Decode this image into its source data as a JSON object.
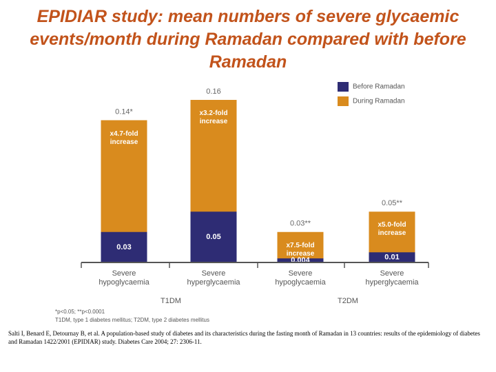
{
  "chart_data": {
    "type": "bar",
    "title": "EPIDIAR study: mean numbers of severe glycaemic events/month during Ramadan compared with before Ramadan",
    "categories": [
      "Severe hypoglycaemia",
      "Severe hyperglycaemia",
      "Severe hypoglycaemia",
      "Severe hyperglycaemia"
    ],
    "groups": [
      "T1DM",
      "T2DM"
    ],
    "series": [
      {
        "name": "Before Ramadan",
        "color": "#2e2c74",
        "values": [
          0.03,
          0.05,
          0.004,
          0.01
        ]
      },
      {
        "name": "During Ramadan",
        "color": "#d98b1e",
        "values": [
          0.14,
          0.16,
          0.03,
          0.05
        ],
        "value_labels": [
          "0.14*",
          "0.16",
          "0.03**",
          "0.05**"
        ]
      }
    ],
    "annotations": [
      "x4.7-fold increase",
      "x3.2-fold increase",
      "x7.5-fold increase",
      "x5.0-fold increase"
    ],
    "ylim": [
      0,
      0.16
    ],
    "legend": "top-right",
    "footnotes": [
      "*p<0.05; **p<0.0001",
      "T1DM, type 1 diabetes mellitus; T2DM, type 2 diabetes mellitus"
    ],
    "citation": "Salti I, Benard E, Detournay B, et al. A population-based study of diabetes and its characteristics during the fasting month of Ramadan in 13 countries: results of the epidemiology of diabetes and Ramadan 1422/2001 (EPIDIAR) study. Diabetes Care 2004; 27: 2306-11."
  }
}
